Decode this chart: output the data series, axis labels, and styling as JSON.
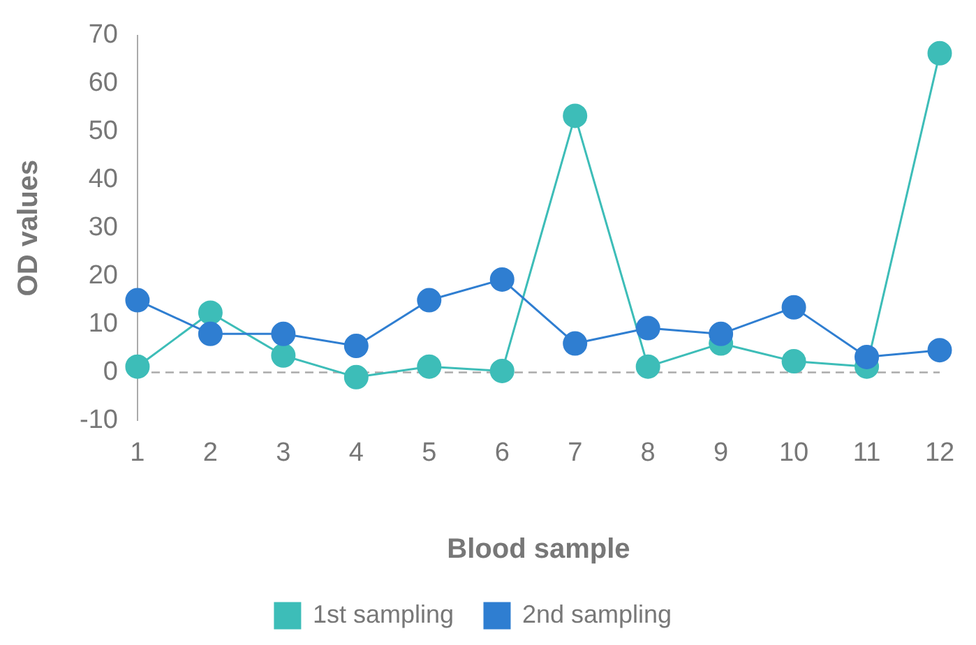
{
  "chart_data": {
    "type": "line",
    "xlabel": "Blood sample",
    "ylabel": "OD values",
    "x": [
      1,
      2,
      3,
      4,
      5,
      6,
      7,
      8,
      9,
      10,
      11,
      12
    ],
    "xlim": [
      1,
      12
    ],
    "xticks": [
      1,
      2,
      3,
      4,
      5,
      6,
      7,
      8,
      9,
      10,
      11,
      12
    ],
    "series": [
      {
        "name": "1st sampling",
        "color": "#3dbdb8",
        "values": [
          1.2,
          12.4,
          3.5,
          -1,
          1.2,
          0.3,
          53.3,
          1.2,
          6,
          2.3,
          1.2,
          66.3
        ]
      },
      {
        "name": "2nd sampling",
        "color": "#2f7ed1",
        "values": [
          15,
          8,
          8,
          5.5,
          15,
          19.3,
          6,
          9.2,
          8,
          13.5,
          3.2,
          4.6
        ]
      }
    ],
    "ylim": [
      -10,
      70
    ],
    "yticks": [
      -10,
      0,
      10,
      20,
      30,
      40,
      50,
      60,
      70
    ],
    "ref_lines": [
      {
        "axis": "y",
        "value": 0,
        "line_style": "dashed",
        "color": "#aaaaaa"
      }
    ],
    "grid": false,
    "legend": "bottom",
    "marker": "circle",
    "line_style": "solid"
  }
}
